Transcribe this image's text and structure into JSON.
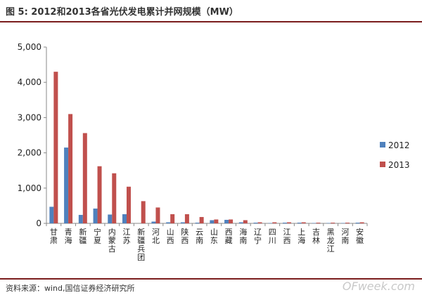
{
  "header": {
    "title": "图 5: 2012和2013各省光伏发电累计并网规模（MW）"
  },
  "footer": {
    "source": "资料来源：wind,国信证券经济研究所",
    "watermark": "OFweek.com"
  },
  "colors": {
    "series_2012": "#4f81bd",
    "series_2013": "#c0504d"
  },
  "chart_data": {
    "type": "bar",
    "title": "",
    "xlabel": "",
    "ylabel": "",
    "ylim": [
      0,
      5000
    ],
    "yticks": [
      "0",
      "1,000",
      "2,000",
      "3,000",
      "4,000",
      "5,000"
    ],
    "ytick_values": [
      0,
      1000,
      2000,
      3000,
      4000,
      5000
    ],
    "categories": [
      "甘肃",
      "青海",
      "新疆",
      "宁夏",
      "内蒙古",
      "江苏",
      "新疆兵团",
      "河北",
      "山西",
      "陕西",
      "云南",
      "山东",
      "西藏",
      "海南",
      "辽宁",
      "四川",
      "江西",
      "上海",
      "吉林",
      "黑龙江",
      "河南",
      "安徽"
    ],
    "series": [
      {
        "name": "2012",
        "values": [
          470,
          2150,
          240,
          420,
          250,
          260,
          0,
          50,
          30,
          30,
          20,
          90,
          100,
          30,
          20,
          10,
          20,
          20,
          10,
          10,
          10,
          20
        ]
      },
      {
        "name": "2013",
        "values": [
          4300,
          3100,
          2560,
          1620,
          1420,
          1040,
          630,
          450,
          260,
          260,
          180,
          110,
          110,
          90,
          30,
          30,
          30,
          30,
          20,
          20,
          20,
          30
        ]
      }
    ],
    "legend_position": "right",
    "grid": false
  }
}
